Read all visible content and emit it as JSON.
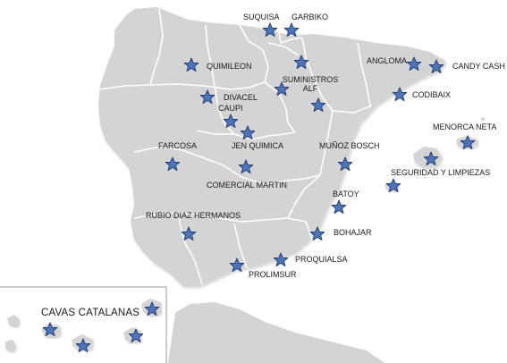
{
  "colors": {
    "land": "#d4d4d4",
    "land_shadow": "#bcbcbc",
    "border": "#ffffff",
    "star_fill": "#4f74b8",
    "star_stroke": "#1f3c73",
    "inset_border": "#9a9a9a"
  },
  "marker_icon": "star-icon",
  "inset": {
    "title": "CAVAS CATALANAS"
  },
  "distributors": [
    {
      "name": "SUQUISA"
    },
    {
      "name": "GARBIKO"
    },
    {
      "name": "QUIMILEON"
    },
    {
      "name": "SUMINISTROS ALF"
    },
    {
      "name": "ANGLOMA"
    },
    {
      "name": "CANDY CASH"
    },
    {
      "name": "DIVACEL"
    },
    {
      "name": "CAUPI"
    },
    {
      "name": "CODIBAIX"
    },
    {
      "name": "MENORCA NETA"
    },
    {
      "name": "FARCOSA"
    },
    {
      "name": "JEN QUIMICA"
    },
    {
      "name": "MUÑOZ BOSCH"
    },
    {
      "name": "SEGURIDAD Y LIMPIEZAS"
    },
    {
      "name": "COMERCIAL MARTIN"
    },
    {
      "name": "BATOY"
    },
    {
      "name": "RUBIO DIAZ HERMANOS"
    },
    {
      "name": "BOHAJAR"
    },
    {
      "name": "PROQUIALSA"
    },
    {
      "name": "PROLIMSUR"
    }
  ]
}
